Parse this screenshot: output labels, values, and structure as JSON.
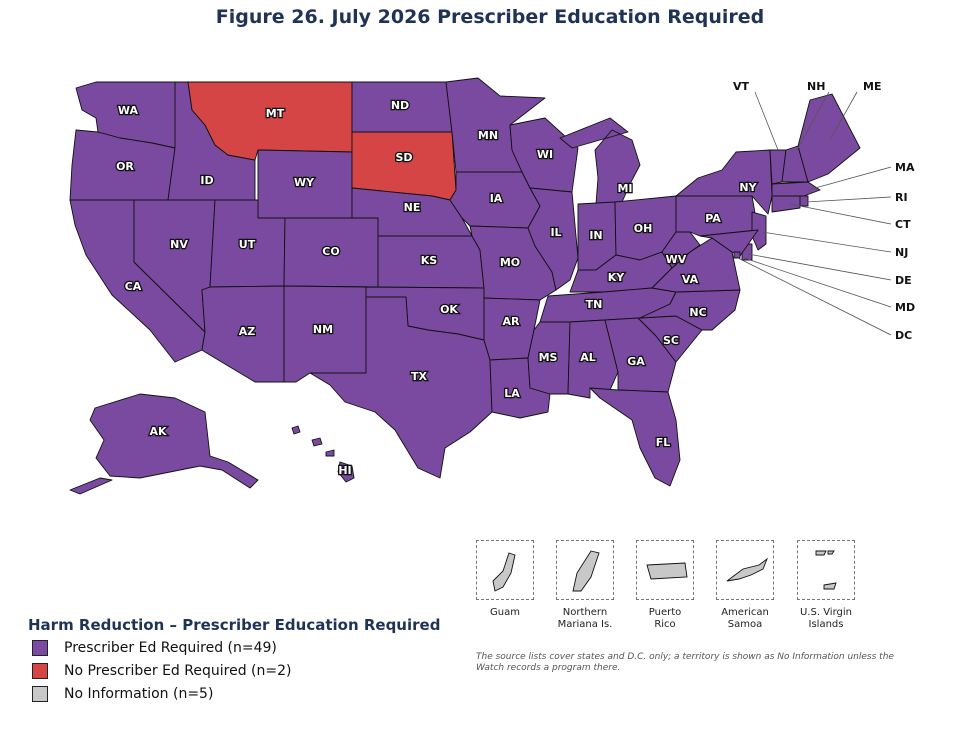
{
  "title": "Figure 26. July 2026 Prescriber Education Required",
  "colors": {
    "required": "#7a4aa0",
    "not_required": "#d54545",
    "no_info": "#c8c8c8"
  },
  "states": {
    "WA": "required",
    "OR": "required",
    "CA": "required",
    "ID": "required",
    "NV": "required",
    "MT": "not_required",
    "WY": "required",
    "UT": "required",
    "AZ": "required",
    "CO": "required",
    "NM": "required",
    "ND": "required",
    "SD": "not_required",
    "NE": "required",
    "KS": "required",
    "OK": "required",
    "TX": "required",
    "MN": "required",
    "IA": "required",
    "MO": "required",
    "AR": "required",
    "LA": "required",
    "WI": "required",
    "IL": "required",
    "MS": "required",
    "MI": "required",
    "IN": "required",
    "OH": "required",
    "KY": "required",
    "TN": "required",
    "AL": "required",
    "GA": "required",
    "FL": "required",
    "SC": "required",
    "NC": "required",
    "VA": "required",
    "WV": "required",
    "PA": "required",
    "NY": "required",
    "VT": "required",
    "NH": "required",
    "ME": "required",
    "MA": "required",
    "RI": "required",
    "CT": "required",
    "NJ": "required",
    "DE": "required",
    "MD": "required",
    "DC": "required",
    "AK": "required",
    "HI": "required"
  },
  "callouts": [
    "VT",
    "NH",
    "ME",
    "MA",
    "RI",
    "CT",
    "NJ",
    "DE",
    "MD",
    "DC"
  ],
  "territories": [
    {
      "name": "Guam",
      "status": "no_info"
    },
    {
      "name": "Northern\nMariana Is.",
      "status": "no_info"
    },
    {
      "name": "Puerto\nRico",
      "status": "no_info"
    },
    {
      "name": "American\nSamoa",
      "status": "no_info"
    },
    {
      "name": "U.S. Virgin\nIslands",
      "status": "no_info"
    }
  ],
  "legend": {
    "title": "Harm Reduction – Prescriber Education Required",
    "items": [
      {
        "label": "Prescriber Ed Required (n=49)",
        "status": "required"
      },
      {
        "label": "No Prescriber Ed Required (n=2)",
        "status": "not_required"
      },
      {
        "label": "No Information (n=5)",
        "status": "no_info"
      }
    ]
  },
  "note": "The source lists cover states and D.C. only; a territory is shown as No Information unless the Watch records a program there."
}
